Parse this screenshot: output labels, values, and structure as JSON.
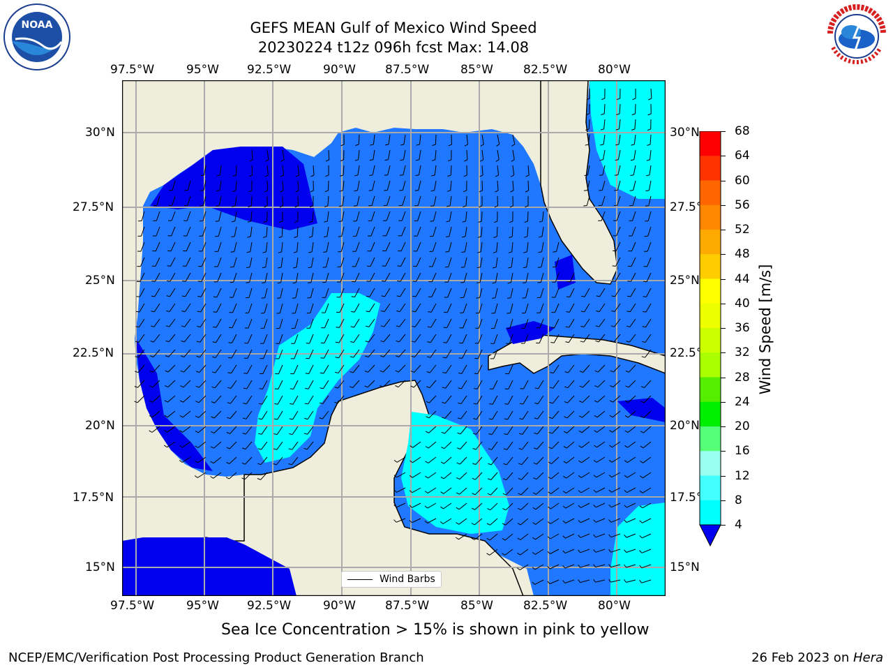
{
  "header": {
    "title_line1": "GEFS MEAN Gulf of Mexico Wind Speed",
    "title_line2": "20230224 t12z 096h fcst   Max: 14.08"
  },
  "logos": {
    "left": "NOAA",
    "right": "NATIONAL WEATHER SERVICE"
  },
  "map": {
    "lon_ticks": [
      "97.5°W",
      "95°W",
      "92.5°W",
      "90°W",
      "87.5°W",
      "85°W",
      "82.5°W",
      "80°W"
    ],
    "lat_ticks_left": [
      "30°N",
      "27.5°N",
      "25°N",
      "22.5°N",
      "20°N",
      "17.5°N",
      "15°N"
    ],
    "lat_ticks_right": [
      "30°N",
      "27.5°",
      "25°N",
      "22.5°",
      "20°N",
      "17.5°",
      "15°N"
    ],
    "legend_label": "Wind Barbs"
  },
  "colorbar": {
    "label": "Wind Speed [m/s]",
    "ticks": [
      "68",
      "64",
      "60",
      "56",
      "52",
      "48",
      "44",
      "40",
      "36",
      "32",
      "28",
      "24",
      "20",
      "16",
      "12",
      "8",
      "4"
    ],
    "colors": [
      "#ff0000",
      "#ff3300",
      "#ff6600",
      "#ff8800",
      "#ffaa00",
      "#ffcc00",
      "#ffff00",
      "#eeff00",
      "#ccff00",
      "#aaff00",
      "#55ee00",
      "#00ee00",
      "#55ff77",
      "#99ffee",
      "#44ffff",
      "#00ffff",
      "#0077ff"
    ],
    "extend_color": "#0000ee"
  },
  "ocean_colors": {
    "lt4": "#0000ee",
    "4to8": "#1f78ff",
    "8to12": "#00ffff",
    "12to16": "#44ffee",
    "land": "#efeedc"
  },
  "footer": {
    "note": "Sea Ice Concentration > 15% is shown in pink to yellow",
    "left": "NCEP/EMC/Verification Post Processing Product Generation Branch",
    "right_date": "26 Feb 2023 on ",
    "right_host": "Hera"
  }
}
